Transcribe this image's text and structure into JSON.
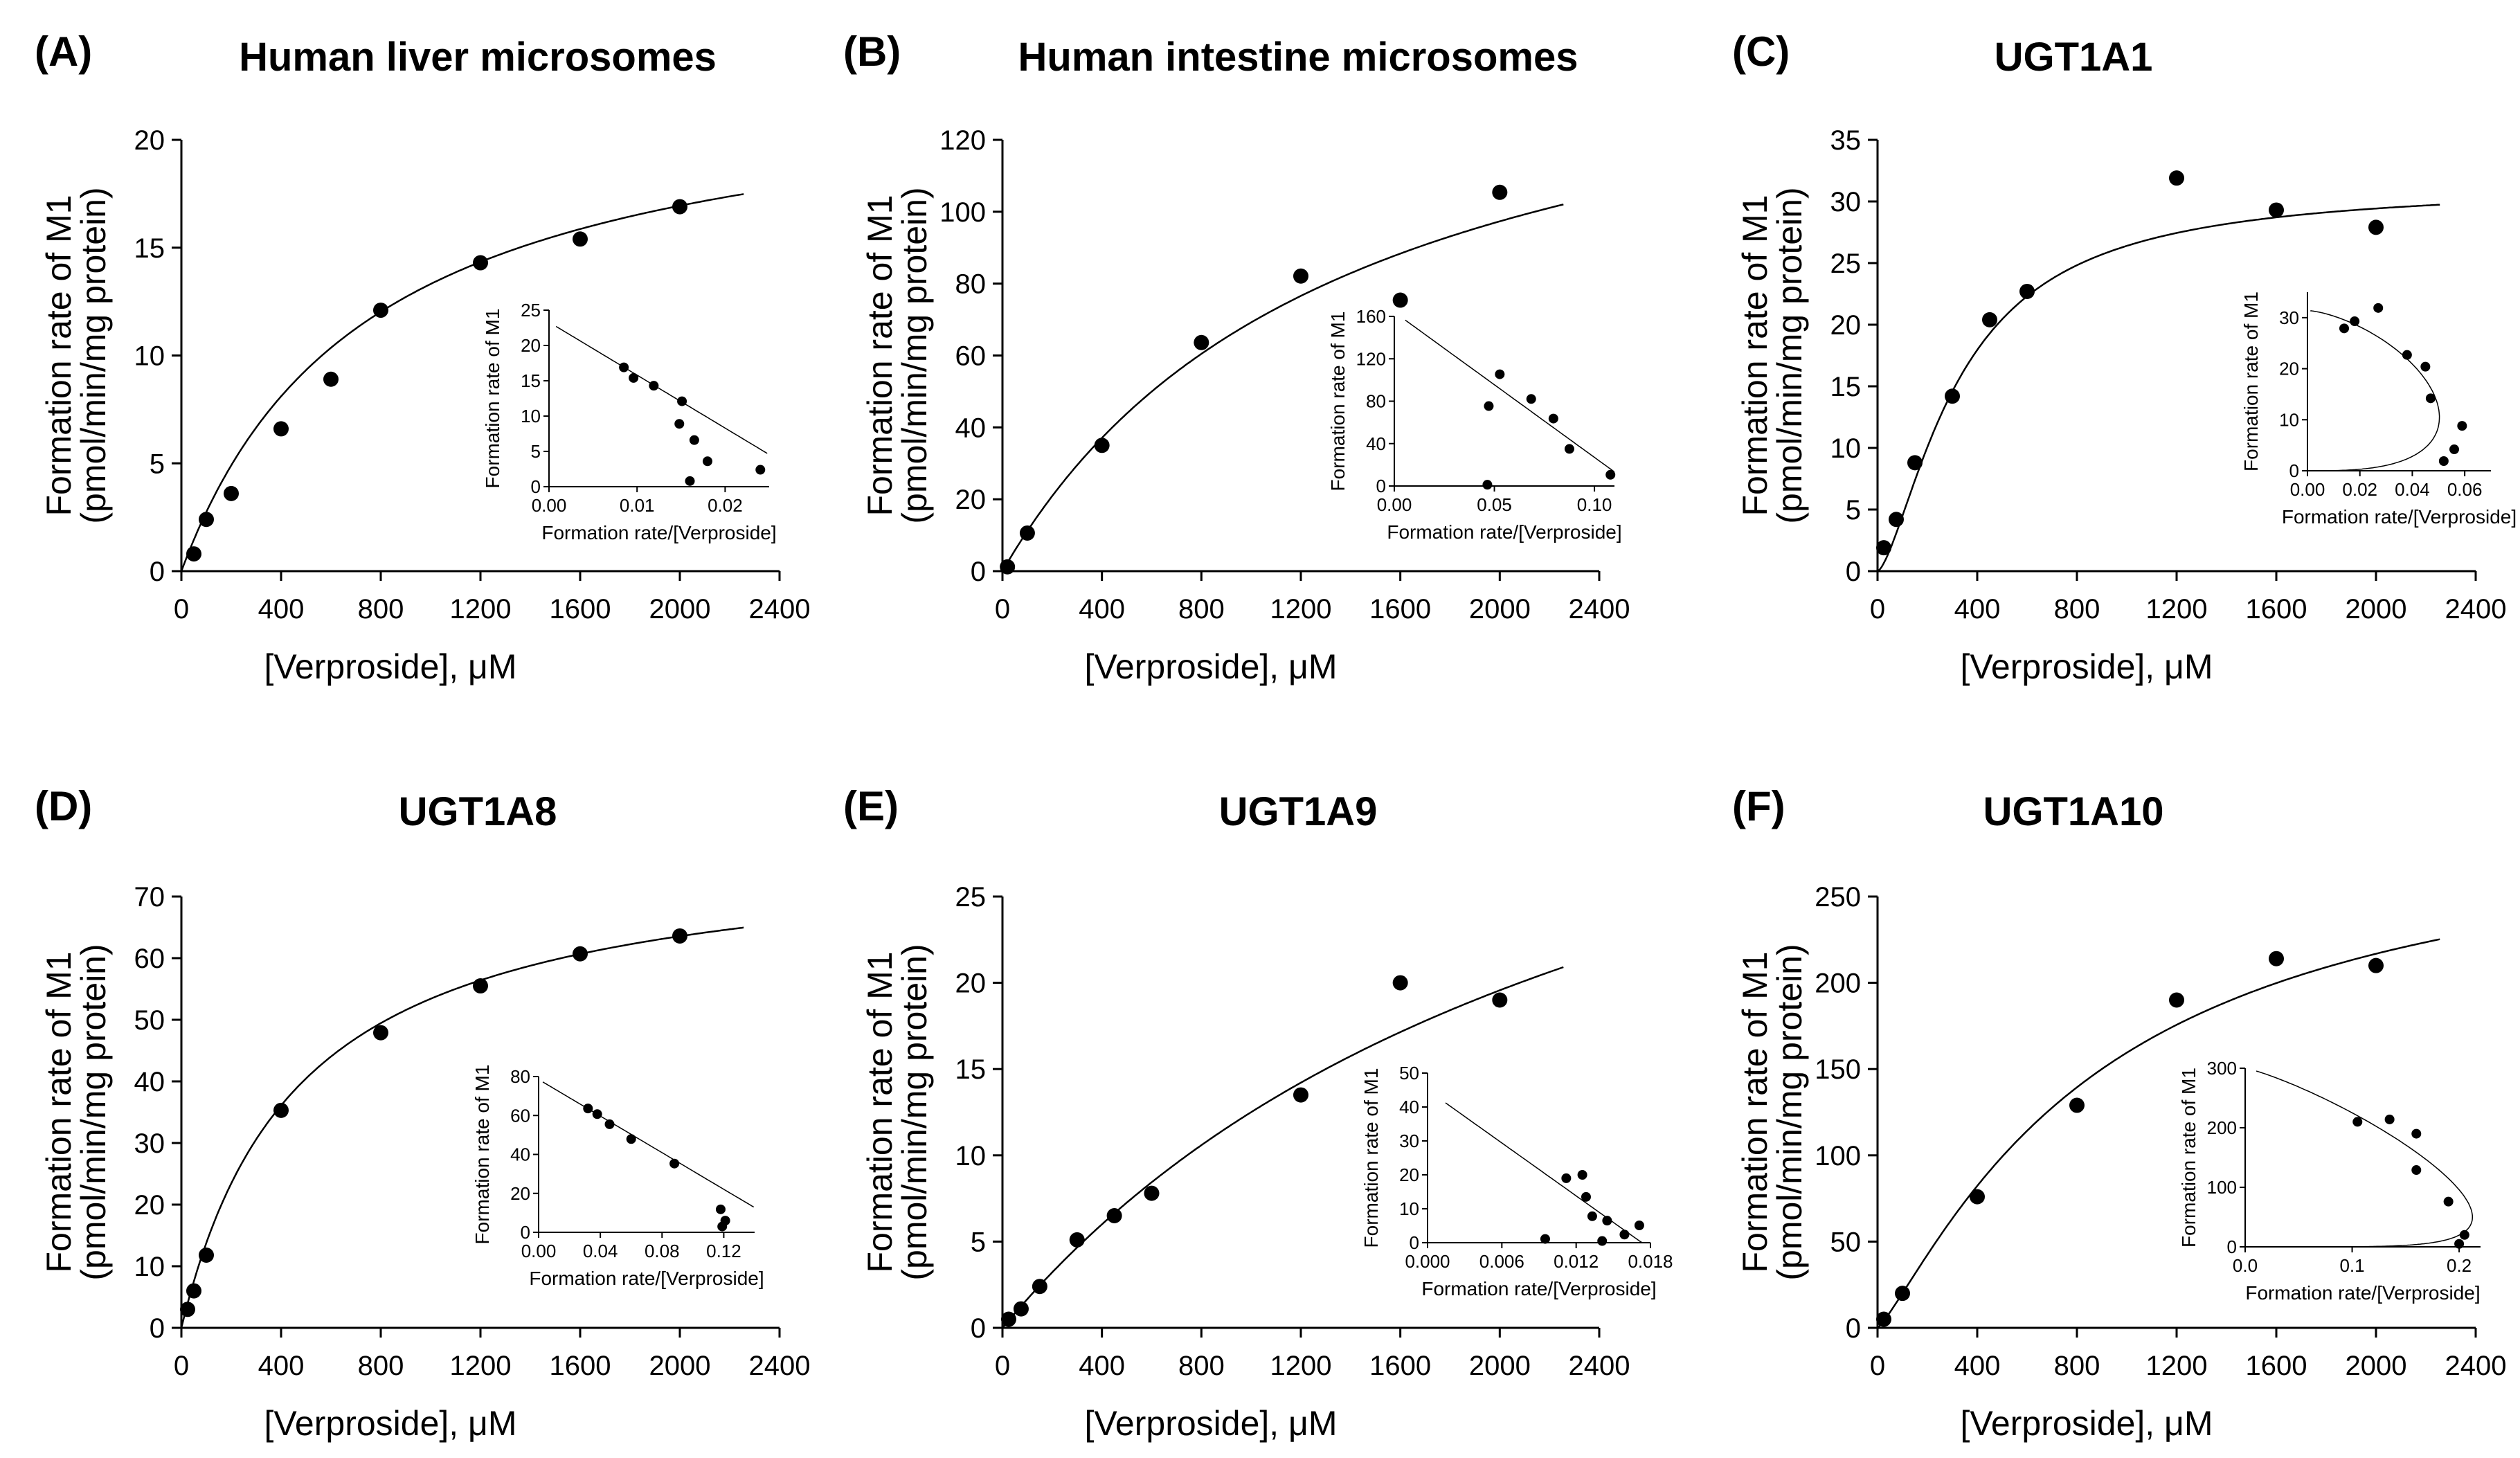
{
  "figure": {
    "y_label_line1": "Formation rate of M1",
    "y_label_line2": "(pmol/min/mg protein)",
    "x_label": "[Verproside], μM",
    "inset_y_label": "Formation rate of M1",
    "inset_x_label": "Formation rate/[Verproside]"
  },
  "chart_data": [
    {
      "panel": "(A)",
      "title": "Human liver microsomes",
      "type": "scatter",
      "xlabel": "[Verproside], μM",
      "ylabel": "Formation rate of M1 (pmol/min/mg protein)",
      "xlim": [
        0,
        2400
      ],
      "ylim": [
        0,
        20
      ],
      "xticks": [
        0,
        400,
        800,
        1200,
        1600,
        2000,
        2400
      ],
      "yticks": [
        0,
        5,
        10,
        15,
        20
      ],
      "x": [
        50,
        100,
        200,
        400,
        600,
        800,
        1200,
        1600,
        2000
      ],
      "y": [
        0.8,
        2.4,
        3.6,
        6.6,
        8.9,
        12.1,
        14.3,
        15.4,
        16.9
      ],
      "fit": {
        "model": "michaelis-menten",
        "vmax": 23.3,
        "km": 750,
        "n": 1
      },
      "inset": {
        "type": "eadie-hofstee",
        "xlim": [
          0,
          0.025
        ],
        "ylim": [
          0,
          25
        ],
        "xticks": [
          0,
          0.01,
          0.02
        ],
        "xtick_labels": [
          "0.00",
          "0.01",
          "0.02"
        ],
        "yticks": [
          0,
          5,
          10,
          15,
          20,
          25
        ],
        "x": [
          0.016,
          0.024,
          0.018,
          0.0165,
          0.0148,
          0.0151,
          0.0119,
          0.0096,
          0.0085
        ],
        "y": [
          0.8,
          2.4,
          3.6,
          6.6,
          8.9,
          12.1,
          14.3,
          15.4,
          16.9
        ]
      }
    },
    {
      "panel": "(B)",
      "title": "Human intestine microsomes",
      "type": "scatter",
      "xlabel": "[Verproside], μM",
      "ylabel": "Formation rate of M1 (pmol/min/mg protein)",
      "xlim": [
        0,
        2400
      ],
      "ylim": [
        0,
        120
      ],
      "xticks": [
        0,
        400,
        800,
        1200,
        1600,
        2000,
        2400
      ],
      "yticks": [
        0,
        20,
        40,
        60,
        80,
        100,
        120
      ],
      "x": [
        20,
        100,
        400,
        800,
        1200,
        1600,
        2000
      ],
      "y": [
        1.2,
        10.6,
        35,
        63.6,
        82.1,
        75.4,
        105.4
      ],
      "fit": {
        "model": "michaelis-menten",
        "vmax": 164,
        "km": 1370,
        "n": 1
      },
      "inset": {
        "type": "eadie-hofstee",
        "xlim": [
          0,
          0.11
        ],
        "ylim": [
          0,
          160
        ],
        "xticks": [
          0,
          0.05,
          0.1
        ],
        "xtick_labels": [
          "0.00",
          "0.05",
          "0.10"
        ],
        "yticks": [
          0,
          40,
          80,
          120,
          160
        ],
        "x": [
          0.0465,
          0.108,
          0.0875,
          0.0795,
          0.0684,
          0.0472,
          0.0527
        ],
        "y": [
          1.2,
          10.6,
          35,
          63.6,
          82.1,
          75.4,
          105.4
        ]
      }
    },
    {
      "panel": "(C)",
      "title": "UGT1A1",
      "type": "scatter",
      "xlabel": "[Verproside], μM",
      "ylabel": "Formation rate of M1 (pmol/min/mg protein)",
      "xlim": [
        0,
        2400
      ],
      "ylim": [
        0,
        35
      ],
      "xticks": [
        0,
        400,
        800,
        1200,
        1600,
        2000,
        2400
      ],
      "yticks": [
        0,
        5,
        10,
        15,
        20,
        25,
        30,
        35
      ],
      "x": [
        25,
        75,
        150,
        300,
        450,
        600,
        1200,
        1600,
        2000
      ],
      "y": [
        1.9,
        4.2,
        8.8,
        14.2,
        20.4,
        22.7,
        31.9,
        29.3,
        27.9
      ],
      "fit": {
        "model": "hill",
        "vmax": 31.4,
        "s50": 330,
        "n": 1.5
      },
      "inset": {
        "type": "eadie-hofstee",
        "xlim": [
          0,
          0.07
        ],
        "ylim": [
          0,
          35
        ],
        "xticks": [
          0,
          0.02,
          0.04,
          0.06
        ],
        "xtick_labels": [
          "0.00",
          "0.02",
          "0.04",
          "0.06"
        ],
        "yticks": [
          0,
          10,
          20,
          30
        ],
        "x": [
          0.052,
          0.056,
          0.059,
          0.047,
          0.045,
          0.038,
          0.027,
          0.018,
          0.014
        ],
        "y": [
          1.9,
          4.2,
          8.8,
          14.2,
          20.4,
          22.7,
          31.9,
          29.3,
          27.9
        ]
      }
    },
    {
      "panel": "(D)",
      "title": "UGT1A8",
      "type": "scatter",
      "xlabel": "[Verproside], μM",
      "ylabel": "Formation rate of M1 (pmol/min/mg protein)",
      "xlim": [
        0,
        2400
      ],
      "ylim": [
        0,
        70
      ],
      "xticks": [
        0,
        400,
        800,
        1200,
        1600,
        2000,
        2400
      ],
      "yticks": [
        0,
        10,
        20,
        30,
        40,
        50,
        60,
        70
      ],
      "x": [
        25,
        50,
        100,
        400,
        800,
        1200,
        1600,
        2000
      ],
      "y": [
        3,
        6,
        11.8,
        35.3,
        47.9,
        55.5,
        60.7,
        63.6
      ],
      "fit": {
        "model": "michaelis-menten",
        "vmax": 78.5,
        "km": 470,
        "n": 1
      },
      "inset": {
        "type": "eadie-hofstee",
        "xlim": [
          0,
          0.14
        ],
        "ylim": [
          0,
          80
        ],
        "xticks": [
          0,
          0.04,
          0.08,
          0.12
        ],
        "xtick_labels": [
          "0.00",
          "0.04",
          "0.08",
          "0.12"
        ],
        "yticks": [
          0,
          20,
          40,
          60,
          80
        ],
        "x": [
          0.119,
          0.121,
          0.118,
          0.088,
          0.06,
          0.046,
          0.038,
          0.032
        ],
        "y": [
          3,
          6,
          11.8,
          35.3,
          47.9,
          55.5,
          60.7,
          63.6
        ]
      }
    },
    {
      "panel": "(E)",
      "title": "UGT1A9",
      "type": "scatter",
      "xlabel": "[Verproside], μM",
      "ylabel": "Formation rate of M1 (pmol/min/mg protein)",
      "xlim": [
        0,
        2400
      ],
      "ylim": [
        0,
        25
      ],
      "xticks": [
        0,
        400,
        800,
        1200,
        1600,
        2000,
        2400
      ],
      "yticks": [
        0,
        5,
        10,
        15,
        20,
        25
      ],
      "x": [
        25,
        75,
        150,
        300,
        450,
        600,
        1200,
        1600,
        2000
      ],
      "y": [
        0.5,
        1.1,
        2.4,
        5.1,
        6.5,
        7.8,
        13.5,
        20,
        19
      ],
      "fit": {
        "model": "michaelis-menten",
        "vmax": 45,
        "km": 2600,
        "n": 1
      },
      "inset": {
        "type": "eadie-hofstee",
        "xlim": [
          0,
          0.018
        ],
        "ylim": [
          0,
          50
        ],
        "xticks": [
          0,
          0.006,
          0.012,
          0.018
        ],
        "xtick_labels": [
          "0.000",
          "0.006",
          "0.012",
          "0.018"
        ],
        "yticks": [
          0,
          10,
          20,
          30,
          40,
          50
        ],
        "x": [
          0.0141,
          0.0171,
          0.0159,
          0.0133,
          0.0145,
          0.0128,
          0.0112,
          0.0125,
          0.0095
        ],
        "y": [
          0.5,
          5.1,
          2.4,
          7.8,
          6.5,
          13.5,
          19,
          20,
          1.1
        ]
      }
    },
    {
      "panel": "(F)",
      "title": "UGT1A10",
      "type": "scatter",
      "xlabel": "[Verproside], μM",
      "ylabel": "Formation rate of M1 (pmol/min/mg protein)",
      "xlim": [
        0,
        2400
      ],
      "ylim": [
        0,
        250
      ],
      "xticks": [
        0,
        400,
        800,
        1200,
        1600,
        2000,
        2400
      ],
      "yticks": [
        0,
        50,
        100,
        150,
        200,
        250
      ],
      "x": [
        25,
        100,
        400,
        800,
        1200,
        1600,
        2000
      ],
      "y": [
        5,
        20,
        76,
        129,
        190,
        214,
        210
      ],
      "fit": {
        "model": "hill",
        "vmax": 300,
        "s50": 900,
        "n": 1.2
      },
      "inset": {
        "type": "eadie-hofstee",
        "xlim": [
          0,
          0.22
        ],
        "ylim": [
          0,
          300
        ],
        "xticks": [
          0,
          0.1,
          0.2
        ],
        "xtick_labels": [
          "0.0",
          "0.1",
          "0.2"
        ],
        "yticks": [
          0,
          100,
          200,
          300
        ],
        "x": [
          0.2,
          0.205,
          0.19,
          0.16,
          0.16,
          0.135,
          0.105
        ],
        "y": [
          5,
          20,
          76,
          129,
          190,
          214,
          210
        ]
      }
    }
  ]
}
